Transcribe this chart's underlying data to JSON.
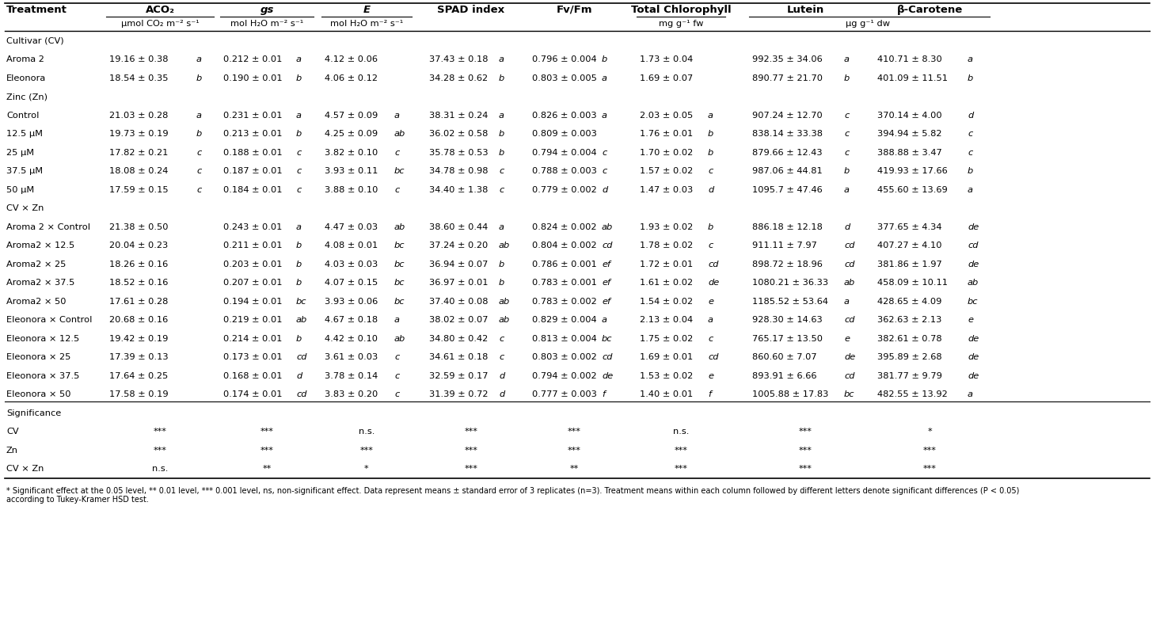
{
  "footnote": "* Significant effect at the 0.05 level, ** 0.01 level, *** 0.001 level, ns, non-significant effect. Data represent means ± standard error of 3 replicates (n=3). Treatment means within each column followed by different letters denote significant differences (P < 0.05)\naccording to Tukey-Kramer HSD test.",
  "rows": [
    {
      "label": "Cultivar (CV)",
      "type": "section"
    },
    {
      "label": "Aroma 2",
      "type": "data",
      "ACO2": "19.16 ± 0.38",
      "ACO2_l": "a",
      "gs": "0.212 ± 0.01",
      "gs_l": "a",
      "E": "4.12 ± 0.06",
      "E_l": "",
      "SPAD": "37.43 ± 0.18",
      "SPAD_l": "a",
      "FvFm": "0.796 ± 0.004",
      "FvFm_l": "b",
      "TChl": "1.73 ± 0.04",
      "TChl_l": "",
      "Lutein": "992.35 ± 34.06",
      "Lutein_l": "a",
      "bCar": "410.71 ± 8.30",
      "bCar_l": "a"
    },
    {
      "label": "Eleonora",
      "type": "data",
      "ACO2": "18.54 ± 0.35",
      "ACO2_l": "b",
      "gs": "0.190 ± 0.01",
      "gs_l": "b",
      "E": "4.06 ± 0.12",
      "E_l": "",
      "SPAD": "34.28 ± 0.62",
      "SPAD_l": "b",
      "FvFm": "0.803 ± 0.005",
      "FvFm_l": "a",
      "TChl": "1.69 ± 0.07",
      "TChl_l": "",
      "Lutein": "890.77 ± 21.70",
      "Lutein_l": "b",
      "bCar": "401.09 ± 11.51",
      "bCar_l": "b"
    },
    {
      "label": "Zinc (Zn)",
      "type": "section"
    },
    {
      "label": "Control",
      "type": "data",
      "ACO2": "21.03 ± 0.28",
      "ACO2_l": "a",
      "gs": "0.231 ± 0.01",
      "gs_l": "a",
      "E": "4.57 ± 0.09",
      "E_l": "a",
      "SPAD": "38.31 ± 0.24",
      "SPAD_l": "a",
      "FvFm": "0.826 ± 0.003",
      "FvFm_l": "a",
      "TChl": "2.03 ± 0.05",
      "TChl_l": "a",
      "Lutein": "907.24 ± 12.70",
      "Lutein_l": "c",
      "bCar": "370.14 ± 4.00",
      "bCar_l": "d"
    },
    {
      "label": "12.5 μM",
      "type": "data",
      "ACO2": "19.73 ± 0.19",
      "ACO2_l": "b",
      "gs": "0.213 ± 0.01",
      "gs_l": "b",
      "E": "4.25 ± 0.09",
      "E_l": "ab",
      "SPAD": "36.02 ± 0.58",
      "SPAD_l": "b",
      "FvFm": "0.809 ± 0.003",
      "FvFm_l": "",
      "TChl": "1.76 ± 0.01",
      "TChl_l": "b",
      "Lutein": "838.14 ± 33.38",
      "Lutein_l": "c",
      "bCar": "394.94 ± 5.82",
      "bCar_l": "c"
    },
    {
      "label": "25 μM",
      "type": "data",
      "ACO2": "17.82 ± 0.21",
      "ACO2_l": "c",
      "gs": "0.188 ± 0.01",
      "gs_l": "c",
      "E": "3.82 ± 0.10",
      "E_l": "c",
      "SPAD": "35.78 ± 0.53",
      "SPAD_l": "b",
      "FvFm": "0.794 ± 0.004",
      "FvFm_l": "c",
      "TChl": "1.70 ± 0.02",
      "TChl_l": "b",
      "Lutein": "879.66 ± 12.43",
      "Lutein_l": "c",
      "bCar": "388.88 ± 3.47",
      "bCar_l": "c"
    },
    {
      "label": "37.5 μM",
      "type": "data",
      "ACO2": "18.08 ± 0.24",
      "ACO2_l": "c",
      "gs": "0.187 ± 0.01",
      "gs_l": "c",
      "E": "3.93 ± 0.11",
      "E_l": "bc",
      "SPAD": "34.78 ± 0.98",
      "SPAD_l": "c",
      "FvFm": "0.788 ± 0.003",
      "FvFm_l": "c",
      "TChl": "1.57 ± 0.02",
      "TChl_l": "c",
      "Lutein": "987.06 ± 44.81",
      "Lutein_l": "b",
      "bCar": "419.93 ± 17.66",
      "bCar_l": "b"
    },
    {
      "label": "50 μM",
      "type": "data",
      "ACO2": "17.59 ± 0.15",
      "ACO2_l": "c",
      "gs": "0.184 ± 0.01",
      "gs_l": "c",
      "E": "3.88 ± 0.10",
      "E_l": "c",
      "SPAD": "34.40 ± 1.38",
      "SPAD_l": "c",
      "FvFm": "0.779 ± 0.002",
      "FvFm_l": "d",
      "TChl": "1.47 ± 0.03",
      "TChl_l": "d",
      "Lutein": "1095.7 ± 47.46",
      "Lutein_l": "a",
      "bCar": "455.60 ± 13.69",
      "bCar_l": "a"
    },
    {
      "label": "CV × Zn",
      "type": "section"
    },
    {
      "label": "Aroma 2 × Control",
      "type": "data",
      "ACO2": "21.38 ± 0.50",
      "ACO2_l": "",
      "gs": "0.243 ± 0.01",
      "gs_l": "a",
      "E": "4.47 ± 0.03",
      "E_l": "ab",
      "SPAD": "38.60 ± 0.44",
      "SPAD_l": "a",
      "FvFm": "0.824 ± 0.002",
      "FvFm_l": "ab",
      "TChl": "1.93 ± 0.02",
      "TChl_l": "b",
      "Lutein": "886.18 ± 12.18",
      "Lutein_l": "d",
      "bCar": "377.65 ± 4.34",
      "bCar_l": "de"
    },
    {
      "label": "Aroma2 × 12.5",
      "type": "data",
      "ACO2": "20.04 ± 0.23",
      "ACO2_l": "",
      "gs": "0.211 ± 0.01",
      "gs_l": "b",
      "E": "4.08 ± 0.01",
      "E_l": "bc",
      "SPAD": "37.24 ± 0.20",
      "SPAD_l": "ab",
      "FvFm": "0.804 ± 0.002",
      "FvFm_l": "cd",
      "TChl": "1.78 ± 0.02",
      "TChl_l": "c",
      "Lutein": "911.11 ± 7.97",
      "Lutein_l": "cd",
      "bCar": "407.27 ± 4.10",
      "bCar_l": "cd"
    },
    {
      "label": "Aroma2 × 25",
      "type": "data",
      "ACO2": "18.26 ± 0.16",
      "ACO2_l": "",
      "gs": "0.203 ± 0.01",
      "gs_l": "b",
      "E": "4.03 ± 0.03",
      "E_l": "bc",
      "SPAD": "36.94 ± 0.07",
      "SPAD_l": "b",
      "FvFm": "0.786 ± 0.001",
      "FvFm_l": "ef",
      "TChl": "1.72 ± 0.01",
      "TChl_l": "cd",
      "Lutein": "898.72 ± 18.96",
      "Lutein_l": "cd",
      "bCar": "381.86 ± 1.97",
      "bCar_l": "de"
    },
    {
      "label": "Aroma2 × 37.5",
      "type": "data",
      "ACO2": "18.52 ± 0.16",
      "ACO2_l": "",
      "gs": "0.207 ± 0.01",
      "gs_l": "b",
      "E": "4.07 ± 0.15",
      "E_l": "bc",
      "SPAD": "36.97 ± 0.01",
      "SPAD_l": "b",
      "FvFm": "0.783 ± 0.001",
      "FvFm_l": "ef",
      "TChl": "1.61 ± 0.02",
      "TChl_l": "de",
      "Lutein": "1080.21 ± 36.33",
      "Lutein_l": "ab",
      "bCar": "458.09 ± 10.11",
      "bCar_l": "ab"
    },
    {
      "label": "Aroma2 × 50",
      "type": "data",
      "ACO2": "17.61 ± 0.28",
      "ACO2_l": "",
      "gs": "0.194 ± 0.01",
      "gs_l": "bc",
      "E": "3.93 ± 0.06",
      "E_l": "bc",
      "SPAD": "37.40 ± 0.08",
      "SPAD_l": "ab",
      "FvFm": "0.783 ± 0.002",
      "FvFm_l": "ef",
      "TChl": "1.54 ± 0.02",
      "TChl_l": "e",
      "Lutein": "1185.52 ± 53.64",
      "Lutein_l": "a",
      "bCar": "428.65 ± 4.09",
      "bCar_l": "bc"
    },
    {
      "label": "Eleonora × Control",
      "type": "data",
      "ACO2": "20.68 ± 0.16",
      "ACO2_l": "",
      "gs": "0.219 ± 0.01",
      "gs_l": "ab",
      "E": "4.67 ± 0.18",
      "E_l": "a",
      "SPAD": "38.02 ± 0.07",
      "SPAD_l": "ab",
      "FvFm": "0.829 ± 0.004",
      "FvFm_l": "a",
      "TChl": "2.13 ± 0.04",
      "TChl_l": "a",
      "Lutein": "928.30 ± 14.63",
      "Lutein_l": "cd",
      "bCar": "362.63 ± 2.13",
      "bCar_l": "e"
    },
    {
      "label": "Eleonora × 12.5",
      "type": "data",
      "ACO2": "19.42 ± 0.19",
      "ACO2_l": "",
      "gs": "0.214 ± 0.01",
      "gs_l": "b",
      "E": "4.42 ± 0.10",
      "E_l": "ab",
      "SPAD": "34.80 ± 0.42",
      "SPAD_l": "c",
      "FvFm": "0.813 ± 0.004",
      "FvFm_l": "bc",
      "TChl": "1.75 ± 0.02",
      "TChl_l": "c",
      "Lutein": "765.17 ± 13.50",
      "Lutein_l": "e",
      "bCar": "382.61 ± 0.78",
      "bCar_l": "de"
    },
    {
      "label": "Eleonora × 25",
      "type": "data",
      "ACO2": "17.39 ± 0.13",
      "ACO2_l": "",
      "gs": "0.173 ± 0.01",
      "gs_l": "cd",
      "E": "3.61 ± 0.03",
      "E_l": "c",
      "SPAD": "34.61 ± 0.18",
      "SPAD_l": "c",
      "FvFm": "0.803 ± 0.002",
      "FvFm_l": "cd",
      "TChl": "1.69 ± 0.01",
      "TChl_l": "cd",
      "Lutein": "860.60 ± 7.07",
      "Lutein_l": "de",
      "bCar": "395.89 ± 2.68",
      "bCar_l": "de"
    },
    {
      "label": "Eleonora × 37.5",
      "type": "data",
      "ACO2": "17.64 ± 0.25",
      "ACO2_l": "",
      "gs": "0.168 ± 0.01",
      "gs_l": "d",
      "E": "3.78 ± 0.14",
      "E_l": "c",
      "SPAD": "32.59 ± 0.17",
      "SPAD_l": "d",
      "FvFm": "0.794 ± 0.002",
      "FvFm_l": "de",
      "TChl": "1.53 ± 0.02",
      "TChl_l": "e",
      "Lutein": "893.91 ± 6.66",
      "Lutein_l": "cd",
      "bCar": "381.77 ± 9.79",
      "bCar_l": "de"
    },
    {
      "label": "Eleonora × 50",
      "type": "data",
      "ACO2": "17.58 ± 0.19",
      "ACO2_l": "",
      "gs": "0.174 ± 0.01",
      "gs_l": "cd",
      "E": "3.83 ± 0.20",
      "E_l": "c",
      "SPAD": "31.39 ± 0.72",
      "SPAD_l": "d",
      "FvFm": "0.777 ± 0.003",
      "FvFm_l": "f",
      "TChl": "1.40 ± 0.01",
      "TChl_l": "f",
      "Lutein": "1005.88 ± 17.83",
      "Lutein_l": "bc",
      "bCar": "482.55 ± 13.92",
      "bCar_l": "a"
    },
    {
      "label": "Significance",
      "type": "section"
    },
    {
      "label": "CV",
      "type": "sig",
      "ACO2": "***",
      "gs": "***",
      "E": "n.s.",
      "SPAD": "***",
      "FvFm": "***",
      "TChl": "n.s.",
      "Lutein": "***",
      "bCar": "*"
    },
    {
      "label": "Zn",
      "type": "sig",
      "ACO2": "***",
      "gs": "***",
      "E": "***",
      "SPAD": "***",
      "FvFm": "***",
      "TChl": "***",
      "Lutein": "***",
      "bCar": "***"
    },
    {
      "label": "CV × Zn",
      "type": "sig",
      "ACO2": "n.s.",
      "gs": "**",
      "E": "*",
      "SPAD": "***",
      "FvFm": "**",
      "TChl": "***",
      "Lutein": "***",
      "bCar": "***"
    }
  ]
}
